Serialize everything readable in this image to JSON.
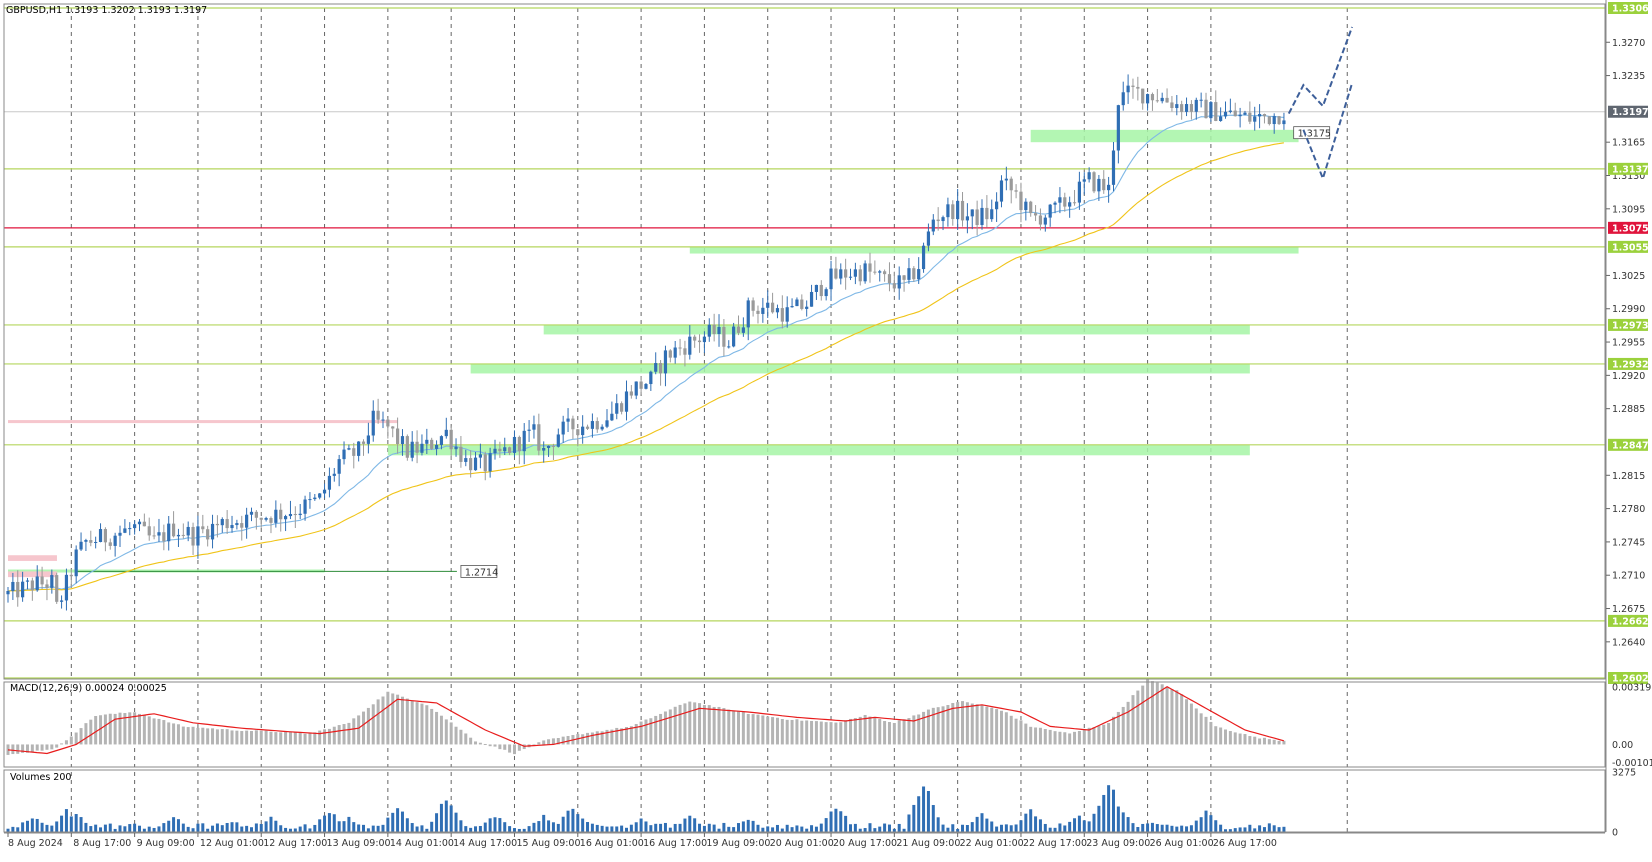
{
  "window": {
    "symbol_info": "GBPUSD,H1  1.3193 1.3202 1.3193 1.3197"
  },
  "colors": {
    "bull": "#2f6eb4",
    "bear": "#9a9a9a",
    "ma_fast": "#7fb8e6",
    "ma_slow": "#f0c419",
    "level_line": "#b5d65e",
    "zone": "#a6f5a6",
    "red_level": "#e0143c",
    "pink_zone": "#f6c6cd",
    "macd_hist": "#b4b4b4",
    "macd_signal": "#e81c1c",
    "volume": "#2f6eb4",
    "forecast": "#3d5f9a",
    "grid": "#555555"
  },
  "chart_data": [
    {
      "type": "candlestick",
      "title": "GBPUSD,H1  1.3193 1.3202 1.3193 1.3197",
      "ylim": [
        1.2602,
        1.3306
      ],
      "y_ticks": [
        "1.3270",
        "1.3235",
        "1.3165",
        "1.3130",
        "1.3095",
        "1.3025",
        "1.2990",
        "1.2955",
        "1.2920",
        "1.2885",
        "1.2815",
        "1.2780",
        "1.2745",
        "1.2710",
        "1.2675",
        "1.2640"
      ],
      "price_levels": [
        {
          "label": "1.3306",
          "value": 1.3306,
          "kind": "level"
        },
        {
          "label": "1.3197",
          "value": 1.3197,
          "kind": "current"
        },
        {
          "label": "1.3137",
          "value": 1.3137,
          "kind": "level"
        },
        {
          "label": "1.3075",
          "value": 1.3075,
          "kind": "red"
        },
        {
          "label": "1.3055",
          "value": 1.3055,
          "kind": "level"
        },
        {
          "label": "1.2973",
          "value": 1.2973,
          "kind": "level"
        },
        {
          "label": "1.2932",
          "value": 1.2932,
          "kind": "level"
        },
        {
          "label": "1.2847",
          "value": 1.2847,
          "kind": "level"
        },
        {
          "label": "1.2662",
          "value": 1.2662,
          "kind": "level"
        },
        {
          "label": "1.2602",
          "value": 1.2602,
          "kind": "level"
        }
      ],
      "annotations": [
        {
          "label": "1.3175",
          "value": 1.3175
        },
        {
          "label": "1.2714",
          "value": 1.2714
        }
      ],
      "zones": [
        {
          "x0": 210,
          "x1": 265,
          "y0": 1.3165,
          "y1": 1.3178
        },
        {
          "x0": 140,
          "x1": 265,
          "y0": 1.3048,
          "y1": 1.3055
        },
        {
          "x0": 110,
          "x1": 255,
          "y0": 1.2963,
          "y1": 1.2973
        },
        {
          "x0": 95,
          "x1": 255,
          "y0": 1.2922,
          "y1": 1.2932
        },
        {
          "x0": 78,
          "x1": 255,
          "y0": 1.2836,
          "y1": 1.2847
        },
        {
          "x0": 0,
          "x1": 65,
          "y0": 1.2714,
          "y1": 1.2716
        }
      ],
      "pink_zones": [
        {
          "x0": 0,
          "x1": 8,
          "y0": 1.2725,
          "y1": 1.2731
        },
        {
          "x0": 0,
          "x1": 8,
          "y0": 1.2708,
          "y1": 1.2714
        },
        {
          "x0": 0,
          "x1": 78,
          "y0": 1.287,
          "y1": 1.2873
        }
      ],
      "forecast_paths": [
        [
          [
            263,
            1.3195
          ],
          [
            266,
            1.3225
          ],
          [
            270,
            1.3203
          ],
          [
            276,
            1.3286
          ]
        ],
        [
          [
            266,
            1.3178
          ],
          [
            270,
            1.3127
          ],
          [
            276,
            1.3227
          ]
        ]
      ],
      "x_tick_labels": [
        "8 Aug 2024",
        "8 Aug 17:00",
        "9 Aug 09:00",
        "12 Aug 01:00",
        "12 Aug 17:00",
        "13 Aug 09:00",
        "14 Aug 01:00",
        "14 Aug 17:00",
        "15 Aug 09:00",
        "16 Aug 01:00",
        "16 Aug 17:00",
        "19 Aug 09:00",
        "20 Aug 01:00",
        "20 Aug 17:00",
        "21 Aug 09:00",
        "22 Aug 01:00",
        "22 Aug 17:00",
        "23 Aug 09:00",
        "26 Aug 01:00",
        "26 Aug 17:00"
      ],
      "x_tick_index": [
        0,
        13,
        26,
        39,
        52,
        65,
        78,
        91,
        104,
        117,
        130,
        143,
        156,
        169,
        182,
        195,
        208,
        221,
        234,
        247
      ],
      "key_points": [
        [
          0,
          1.269
        ],
        [
          5,
          1.27
        ],
        [
          9,
          1.2702
        ],
        [
          10,
          1.2675
        ],
        [
          12,
          1.27
        ],
        [
          14,
          1.273
        ],
        [
          16,
          1.2745
        ],
        [
          20,
          1.275
        ],
        [
          26,
          1.276
        ],
        [
          30,
          1.2745
        ],
        [
          34,
          1.276
        ],
        [
          38,
          1.2752
        ],
        [
          44,
          1.2765
        ],
        [
          50,
          1.277
        ],
        [
          56,
          1.2775
        ],
        [
          60,
          1.278
        ],
        [
          64,
          1.279
        ],
        [
          68,
          1.283
        ],
        [
          72,
          1.284
        ],
        [
          75,
          1.2872
        ],
        [
          78,
          1.2865
        ],
        [
          82,
          1.284
        ],
        [
          86,
          1.2845
        ],
        [
          90,
          1.286
        ],
        [
          94,
          1.283
        ],
        [
          98,
          1.2825
        ],
        [
          102,
          1.284
        ],
        [
          106,
          1.2855
        ],
        [
          108,
          1.2858
        ],
        [
          110,
          1.284
        ],
        [
          113,
          1.286
        ],
        [
          116,
          1.2866
        ],
        [
          120,
          1.287
        ],
        [
          124,
          1.288
        ],
        [
          128,
          1.2905
        ],
        [
          132,
          1.2915
        ],
        [
          135,
          1.294
        ],
        [
          140,
          1.2955
        ],
        [
          145,
          1.2965
        ],
        [
          148,
          1.2955
        ],
        [
          152,
          1.299
        ],
        [
          156,
          1.2992
        ],
        [
          160,
          1.2985
        ],
        [
          164,
          1.2995
        ],
        [
          168,
          1.302
        ],
        [
          172,
          1.3027
        ],
        [
          176,
          1.303
        ],
        [
          180,
          1.302
        ],
        [
          184,
          1.3015
        ],
        [
          187,
          1.3035
        ],
        [
          190,
          1.3085
        ],
        [
          194,
          1.3095
        ],
        [
          198,
          1.3085
        ],
        [
          202,
          1.309
        ],
        [
          204,
          1.3122
        ],
        [
          207,
          1.311
        ],
        [
          210,
          1.3085
        ],
        [
          214,
          1.309
        ],
        [
          218,
          1.3105
        ],
        [
          222,
          1.3125
        ],
        [
          226,
          1.3115
        ],
        [
          228,
          1.321
        ],
        [
          231,
          1.3218
        ],
        [
          235,
          1.3215
        ],
        [
          240,
          1.3205
        ],
        [
          245,
          1.32
        ],
        [
          250,
          1.3195
        ],
        [
          255,
          1.319
        ],
        [
          260,
          1.3193
        ],
        [
          262,
          1.3197
        ]
      ],
      "n_candles": 263
    },
    {
      "type": "histogram+line",
      "title": "MACD(12,26,9) 0.00024 0.00025",
      "ylim": [
        -0.00125,
        0.00335
      ],
      "y_ticks": [
        "0.00319",
        "0.00",
        "-0.00101"
      ],
      "series": [
        {
          "name": "MACD",
          "key_points": [
            [
              0,
              -0.0006
            ],
            [
              10,
              -0.0002
            ],
            [
              18,
              0.0016
            ],
            [
              26,
              0.0018
            ],
            [
              36,
              0.001
            ],
            [
              46,
              0.0008
            ],
            [
              56,
              0.0007
            ],
            [
              62,
              0.0006
            ],
            [
              70,
              0.0012
            ],
            [
              78,
              0.0029
            ],
            [
              86,
              0.0022
            ],
            [
              96,
              0.0002
            ],
            [
              104,
              -0.0005
            ],
            [
              110,
              0.0002
            ],
            [
              118,
              0.0006
            ],
            [
              128,
              0.001
            ],
            [
              140,
              0.0024
            ],
            [
              150,
              0.0018
            ],
            [
              160,
              0.0014
            ],
            [
              170,
              0.0012
            ],
            [
              176,
              0.0016
            ],
            [
              182,
              0.0012
            ],
            [
              190,
              0.002
            ],
            [
              196,
              0.0024
            ],
            [
              204,
              0.0019
            ],
            [
              210,
              0.001
            ],
            [
              218,
              0.0006
            ],
            [
              226,
              0.0012
            ],
            [
              234,
              0.0036
            ],
            [
              240,
              0.003
            ],
            [
              248,
              0.001
            ],
            [
              256,
              0.0004
            ],
            [
              262,
              0.0002
            ]
          ]
        },
        {
          "name": "Signal",
          "key_points": [
            [
              0,
              -0.0003
            ],
            [
              8,
              -0.0005
            ],
            [
              14,
              0.0
            ],
            [
              22,
              0.0014
            ],
            [
              30,
              0.0017
            ],
            [
              38,
              0.0012
            ],
            [
              48,
              0.0009
            ],
            [
              58,
              0.0007
            ],
            [
              64,
              0.0006
            ],
            [
              72,
              0.0009
            ],
            [
              80,
              0.0025
            ],
            [
              88,
              0.0023
            ],
            [
              98,
              0.0008
            ],
            [
              106,
              -0.0001
            ],
            [
              112,
              0.0
            ],
            [
              120,
              0.0005
            ],
            [
              130,
              0.001
            ],
            [
              142,
              0.002
            ],
            [
              152,
              0.0018
            ],
            [
              162,
              0.0015
            ],
            [
              172,
              0.0013
            ],
            [
              178,
              0.0015
            ],
            [
              186,
              0.0013
            ],
            [
              194,
              0.002
            ],
            [
              200,
              0.0022
            ],
            [
              208,
              0.0018
            ],
            [
              214,
              0.001
            ],
            [
              222,
              0.0008
            ],
            [
              230,
              0.0018
            ],
            [
              238,
              0.0032
            ],
            [
              246,
              0.002
            ],
            [
              254,
              0.0008
            ],
            [
              262,
              0.0002
            ]
          ]
        }
      ]
    },
    {
      "type": "bar",
      "title": "Volumes 200",
      "ylim": [
        0,
        3275
      ],
      "y_ticks": [
        "3275",
        "0"
      ],
      "peaks": [
        [
          5,
          900
        ],
        [
          12,
          1200
        ],
        [
          14,
          1050
        ],
        [
          34,
          900
        ],
        [
          46,
          650
        ],
        [
          54,
          800
        ],
        [
          66,
          1200
        ],
        [
          70,
          800
        ],
        [
          80,
          1400
        ],
        [
          90,
          1900
        ],
        [
          100,
          950
        ],
        [
          110,
          950
        ],
        [
          116,
          1550
        ],
        [
          130,
          800
        ],
        [
          140,
          950
        ],
        [
          152,
          750
        ],
        [
          170,
          1500
        ],
        [
          188,
          2950
        ],
        [
          200,
          1050
        ],
        [
          210,
          1250
        ],
        [
          220,
          1000
        ],
        [
          226,
          2950
        ],
        [
          228,
          1500
        ],
        [
          246,
          1150
        ],
        [
          258,
          300
        ]
      ]
    }
  ]
}
